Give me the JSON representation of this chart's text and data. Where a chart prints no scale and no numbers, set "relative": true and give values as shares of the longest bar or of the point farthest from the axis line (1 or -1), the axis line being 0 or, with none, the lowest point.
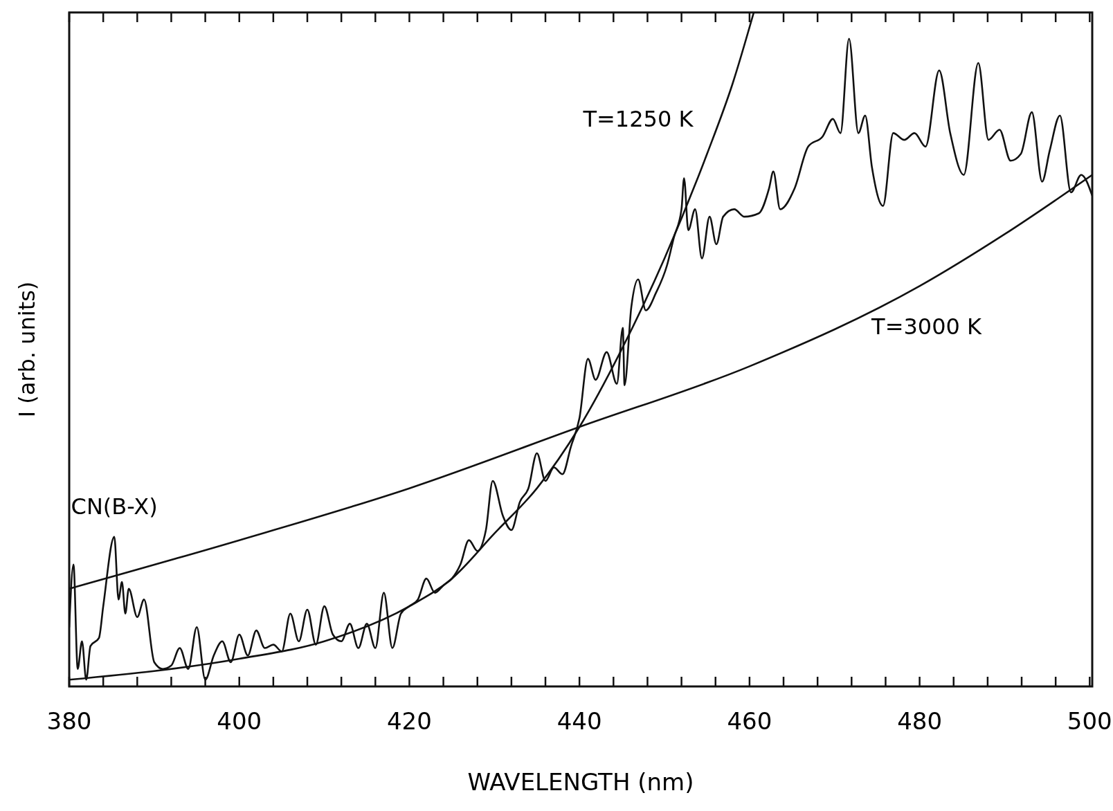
{
  "chart_data": {
    "type": "line",
    "relative": true,
    "xlabel": "WAVELENGTH (nm)",
    "ylabel": "I (arb. units)",
    "xlim": [
      380,
      500.3
    ],
    "xticks": [
      380,
      {
        "value": 384,
        "label": null
      },
      {
        "value": 388,
        "label": null
      },
      {
        "value": 392,
        "label": null
      },
      {
        "value": 396,
        "label": null
      },
      400,
      {
        "value": 404,
        "label": null
      },
      {
        "value": 408,
        "label": null
      },
      {
        "value": 412,
        "label": null
      },
      {
        "value": 416,
        "label": null
      },
      420,
      {
        "value": 424,
        "label": null
      },
      {
        "value": 428,
        "label": null
      },
      {
        "value": 432,
        "label": null
      },
      {
        "value": 436,
        "label": null
      },
      440,
      {
        "value": 444,
        "label": null
      },
      {
        "value": 448,
        "label": null
      },
      {
        "value": 452,
        "label": null
      },
      {
        "value": 456,
        "label": null
      },
      460,
      {
        "value": 464,
        "label": null
      },
      {
        "value": 468,
        "label": null
      },
      {
        "value": 472,
        "label": null
      },
      {
        "value": 476,
        "label": null
      },
      480,
      {
        "value": 484,
        "label": null
      },
      {
        "value": 488,
        "label": null
      },
      {
        "value": 492,
        "label": null
      },
      {
        "value": 496,
        "label": null
      },
      500
    ],
    "annotations": [
      {
        "text": "CN(B-X)",
        "x": 385.3,
        "y": 0.22
      }
    ],
    "series": [
      {
        "color": "#111111",
        "x": [
          380,
          380.5,
          381,
          381.5,
          382,
          382.5,
          383.5,
          384,
          385.3,
          385.8,
          386.2,
          386.6,
          387,
          388,
          388.8,
          390,
          391,
          392,
          393,
          394,
          395,
          396,
          397,
          398,
          399,
          400,
          401,
          402,
          403,
          404,
          405,
          406,
          407,
          408,
          409,
          410,
          411,
          412,
          413,
          414,
          415,
          416,
          417,
          418,
          419,
          420,
          421,
          422,
          423,
          424,
          425,
          426,
          427,
          428,
          429,
          429.8,
          431,
          432,
          433,
          434,
          435,
          436,
          437,
          438,
          439,
          440,
          441,
          441.9,
          443.2,
          444.4,
          445.1,
          445.3,
          446.1,
          446.9,
          447.8,
          449,
          450.3,
          451.1,
          452,
          452.3,
          452.8,
          453.6,
          454.4,
          455.3,
          456.1,
          456.9,
          458.2,
          459.4,
          461.1,
          462.3,
          462.8,
          463.6,
          465.3,
          466.9,
          468.6,
          469.8,
          470.7,
          471.7,
          472.8,
          473.6,
          474.4,
          475.7,
          476.9,
          478.2,
          479.4,
          480.7,
          482.3,
          483.6,
          485.2,
          486.9,
          488.1,
          489.4,
          490.7,
          491.9,
          493.2,
          494.4,
          495.3,
          496.5,
          497.8,
          499,
          500.3
        ],
        "values": [
          0.088,
          0.181,
          0.026,
          0.067,
          0.01,
          0.06,
          0.072,
          0.119,
          0.222,
          0.129,
          0.155,
          0.108,
          0.145,
          0.103,
          0.129,
          0.036,
          0.026,
          0.031,
          0.057,
          0.026,
          0.088,
          0.01,
          0.046,
          0.067,
          0.036,
          0.077,
          0.046,
          0.083,
          0.057,
          0.062,
          0.052,
          0.108,
          0.067,
          0.114,
          0.062,
          0.119,
          0.077,
          0.067,
          0.093,
          0.057,
          0.093,
          0.057,
          0.139,
          0.057,
          0.108,
          0.119,
          0.129,
          0.16,
          0.139,
          0.15,
          0.16,
          0.181,
          0.217,
          0.201,
          0.232,
          0.305,
          0.253,
          0.232,
          0.274,
          0.294,
          0.346,
          0.305,
          0.325,
          0.315,
          0.356,
          0.398,
          0.486,
          0.455,
          0.496,
          0.449,
          0.532,
          0.447,
          0.563,
          0.604,
          0.558,
          0.584,
          0.625,
          0.666,
          0.708,
          0.754,
          0.677,
          0.708,
          0.635,
          0.697,
          0.656,
          0.697,
          0.708,
          0.697,
          0.702,
          0.739,
          0.764,
          0.708,
          0.739,
          0.801,
          0.816,
          0.842,
          0.821,
          0.961,
          0.821,
          0.847,
          0.77,
          0.713,
          0.821,
          0.811,
          0.821,
          0.801,
          0.914,
          0.821,
          0.759,
          0.925,
          0.811,
          0.826,
          0.78,
          0.79,
          0.852,
          0.749,
          0.795,
          0.847,
          0.733,
          0.759,
          0.728
        ]
      },
      {
        "name": "T=1250 K",
        "color": "#111111",
        "x": [
          380,
          400,
          410,
          420,
          425,
          430,
          435,
          440,
          445,
          450,
          455,
          458,
          460.5
        ],
        "values": [
          0.01,
          0.041,
          0.067,
          0.119,
          0.16,
          0.227,
          0.294,
          0.385,
          0.501,
          0.635,
          0.79,
          0.894,
          1
        ]
      },
      {
        "name": "T=3000 K",
        "color": "#111111",
        "x": [
          380,
          400,
          420,
          440,
          460,
          480,
          490,
          500.3
        ],
        "values": [
          0.145,
          0.217,
          0.294,
          0.385,
          0.475,
          0.594,
          0.671,
          0.759
        ]
      }
    ]
  }
}
